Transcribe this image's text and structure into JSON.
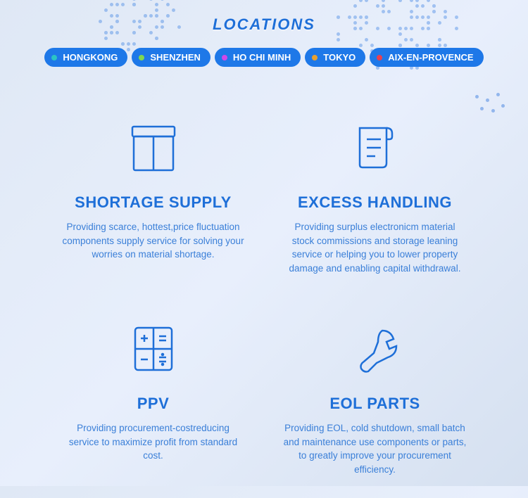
{
  "section_title": "LOCATIONS",
  "locations": [
    {
      "label": "HONGKONG",
      "dot_color": "#2bc4c4"
    },
    {
      "label": "SHENZHEN",
      "dot_color": "#7fd850"
    },
    {
      "label": "HO CHI MINH",
      "dot_color": "#d048e8"
    },
    {
      "label": "TOKYO",
      "dot_color": "#e8a030"
    },
    {
      "label": "AIX-EN-PROVENCE",
      "dot_color": "#e84050"
    }
  ],
  "pill_bg": "#1e78e8",
  "services": [
    {
      "title": "SHORTAGE SUPPLY",
      "desc": "Providing scarce, hottest,price fluctuation components supply service for solving your worries on material shortage.",
      "icon": "box"
    },
    {
      "title": "EXCESS HANDLING",
      "desc": "Providing surplus electronicm material stock commissions and storage leaning service or helping you to lower property damage and enabling capital withdrawal.",
      "icon": "document"
    },
    {
      "title": "PPV",
      "desc": "Providing procurement-costreducing service to maximize profit from standard cost.",
      "icon": "calculator"
    },
    {
      "title": "EOL PARTS",
      "desc": "Providing EOL, cold shutdown, small batch and maintenance use components or parts, to greatly improve your procurement efficiency.",
      "icon": "wrench"
    }
  ],
  "colors": {
    "heading": "#1e6fd8",
    "text": "#3a7fd8",
    "icon_stroke": "#1e6fd8"
  }
}
